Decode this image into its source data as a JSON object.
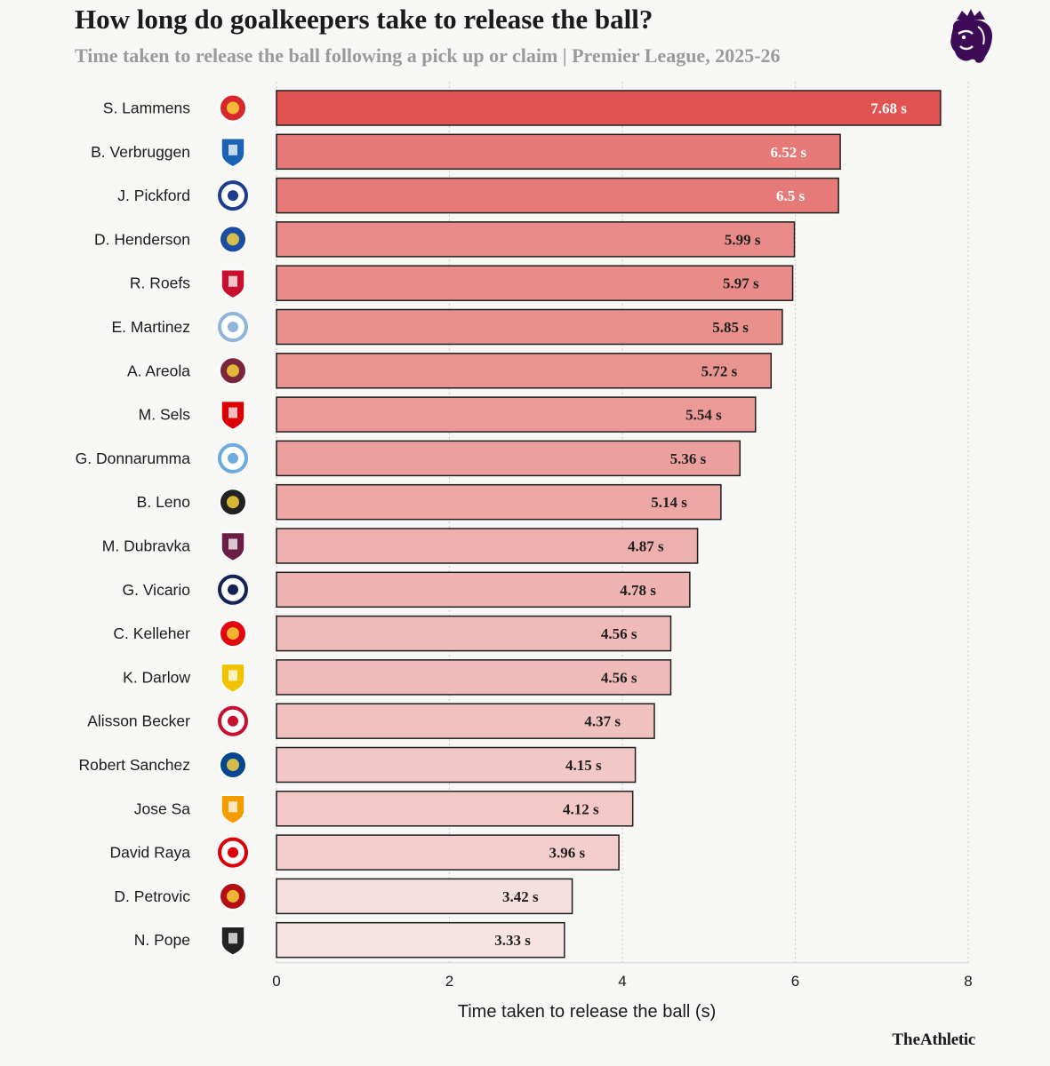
{
  "header": {
    "title": "How long do goalkeepers take to release the ball?",
    "subtitle": "Time taken to release the ball following a pick up or claim | Premier League, 2025-26"
  },
  "brand": {
    "the": "The",
    "name": "Athletic"
  },
  "icons": {
    "league": "premier-league-lion-icon",
    "team": "club-crest-icon"
  },
  "colors": {
    "bar_max": "#e05350",
    "bar_min": "#f6e3e2",
    "bar_border": "#1f1f1f",
    "label_light": "#ffffff",
    "label_dark": "#1f1f1f"
  },
  "chart_data": {
    "type": "bar",
    "orientation": "horizontal",
    "categories": [
      "S. Lammens",
      "B. Verbruggen",
      "J. Pickford",
      "D. Henderson",
      "R. Roefs",
      "E. Martinez",
      "A. Areola",
      "M. Sels",
      "G. Donnarumma",
      "B. Leno",
      "M. Dubravka",
      "G. Vicario",
      "C. Kelleher",
      "K. Darlow",
      "Alisson Becker",
      "Robert Sanchez",
      "Jose Sa",
      "David Raya",
      "D. Petrovic",
      "N. Pope"
    ],
    "values": [
      7.68,
      6.52,
      6.5,
      5.99,
      5.97,
      5.85,
      5.72,
      5.54,
      5.36,
      5.14,
      4.87,
      4.78,
      4.56,
      4.56,
      4.37,
      4.15,
      4.12,
      3.96,
      3.42,
      3.33
    ],
    "value_labels": [
      "7.68 s",
      "6.52 s",
      "6.5 s",
      "5.99 s",
      "5.97 s",
      "5.85 s",
      "5.72 s",
      "5.54 s",
      "5.36 s",
      "5.14 s",
      "4.87 s",
      "4.78 s",
      "4.56 s",
      "4.56 s",
      "4.37 s",
      "4.15 s",
      "4.12 s",
      "3.96 s",
      "3.42 s",
      "3.33 s"
    ],
    "crest_colors": [
      "#d8282b",
      "#1b62b5",
      "#1e3d8f",
      "#1b4ea3",
      "#c8102e",
      "#8fb5d9",
      "#7a263a",
      "#dd0000",
      "#6cabdd",
      "#222222",
      "#6c1d45",
      "#132257",
      "#e30613",
      "#f2c200",
      "#c8102e",
      "#034694",
      "#f29c00",
      "#db0007",
      "#b50e12",
      "#222222"
    ],
    "xlabel": "Time taken to release the ball (s)",
    "xlim": [
      0,
      8
    ],
    "xticks": [
      0,
      2,
      4,
      6,
      8
    ],
    "grid": true
  }
}
